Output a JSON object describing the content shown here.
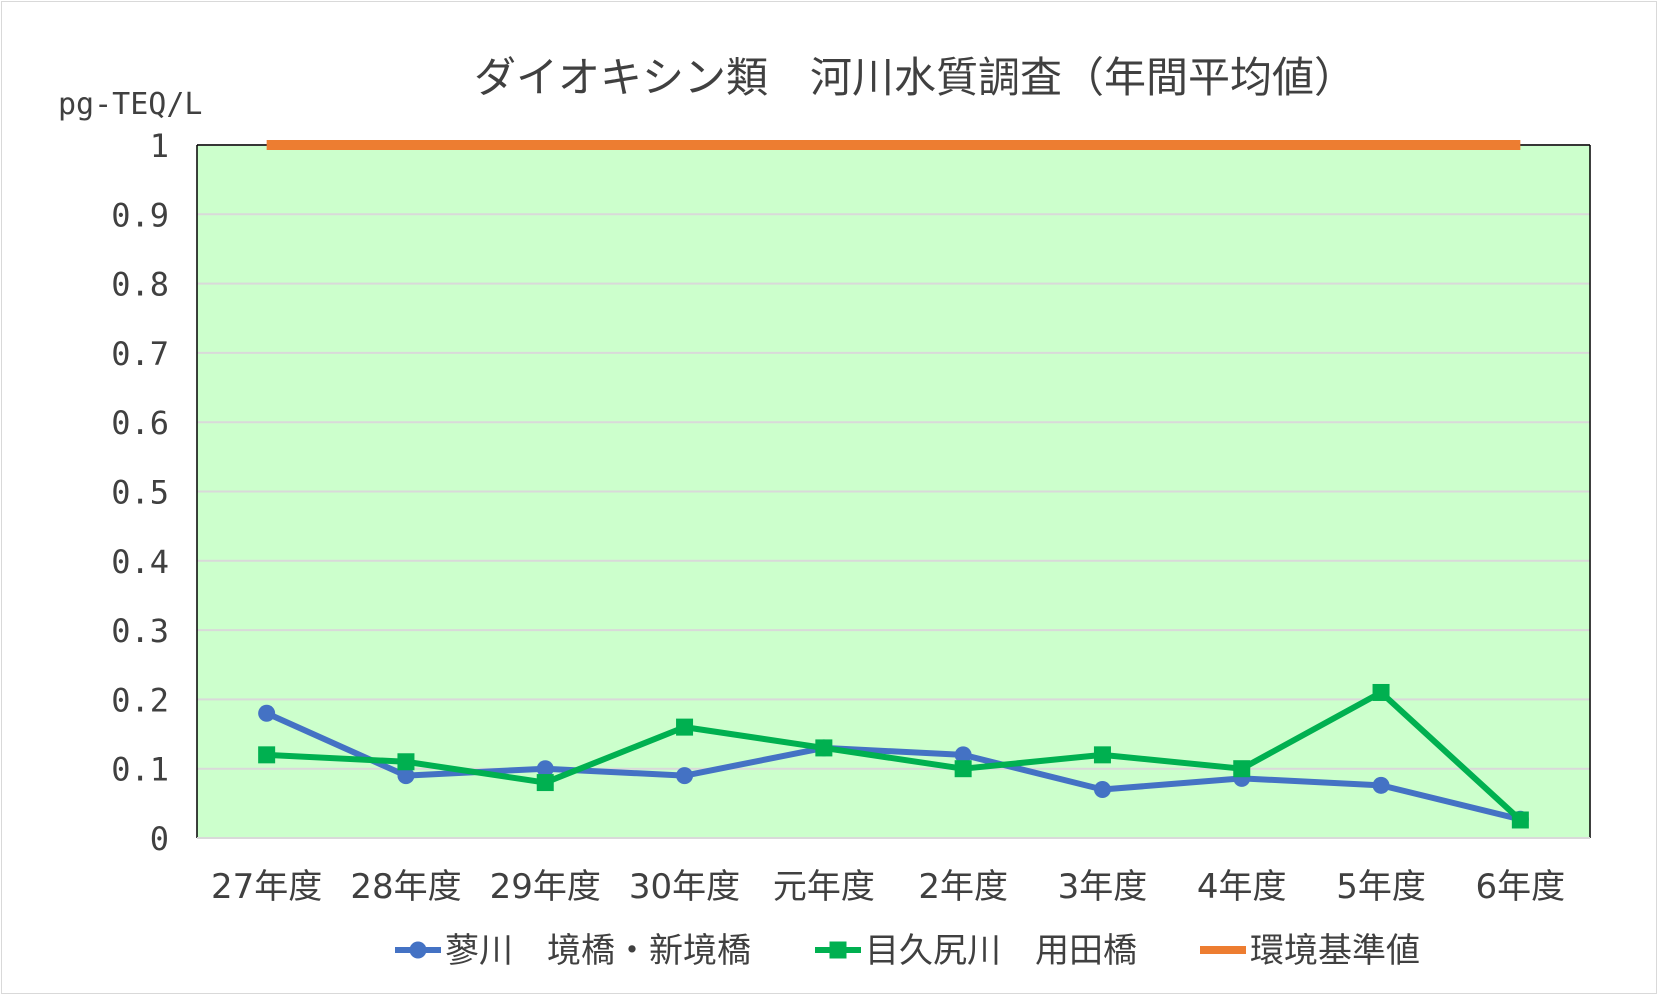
{
  "chart_data": {
    "type": "line",
    "title": "ダイオキシン類　河川水質調査（年間平均値）",
    "ylabel": "pg-TEQ/L",
    "xlabel": "",
    "categories": [
      "27年度",
      "28年度",
      "29年度",
      "30年度",
      "元年度",
      "2年度",
      "3年度",
      "4年度",
      "5年度",
      "6年度"
    ],
    "ylim": [
      0,
      1
    ],
    "yticks": [
      0,
      0.1,
      0.2,
      0.3,
      0.4,
      0.5,
      0.6,
      0.7,
      0.8,
      0.9,
      1
    ],
    "ytick_labels": [
      "0",
      "0.1",
      "0.2",
      "0.3",
      "0.4",
      "0.5",
      "0.6",
      "0.7",
      "0.8",
      "0.9",
      "1"
    ],
    "grid": true,
    "legend_position": "bottom",
    "plot_background": "#ccffcc",
    "series": [
      {
        "name": "蓼川　境橋・新境橋",
        "color": "#4472c4",
        "marker": "circle",
        "values": [
          0.18,
          0.09,
          0.1,
          0.09,
          0.13,
          0.12,
          0.07,
          0.086,
          0.076,
          0.027
        ]
      },
      {
        "name": "目久尻川　用田橋",
        "color": "#00b050",
        "marker": "square",
        "values": [
          0.12,
          0.11,
          0.08,
          0.16,
          0.13,
          0.1,
          0.12,
          0.1,
          0.21,
          0.026
        ]
      },
      {
        "name": "環境基準値",
        "color": "#ed7d31",
        "marker": "none",
        "values": [
          1,
          1,
          1,
          1,
          1,
          1,
          1,
          1,
          1,
          1
        ]
      }
    ]
  }
}
